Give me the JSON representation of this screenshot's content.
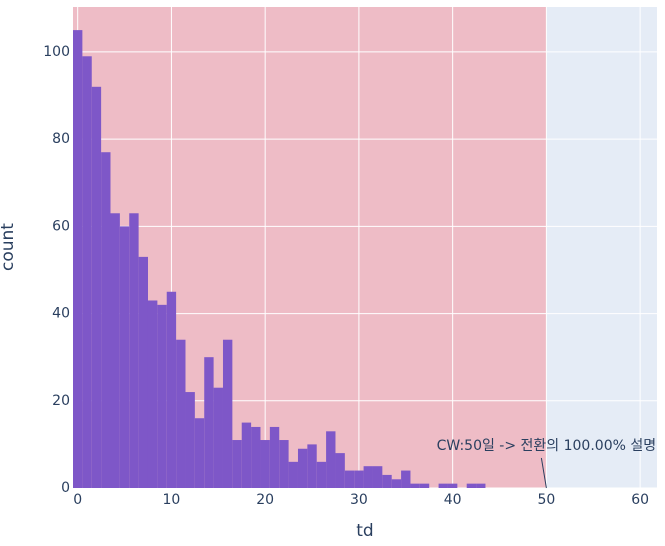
{
  "chart_data": {
    "type": "histogram",
    "x_label": "td",
    "y_label": "count",
    "bins": [
      -0.5,
      0.5,
      1.5,
      2.5,
      3.5,
      4.5,
      5.5,
      6.5,
      7.5,
      8.5,
      9.5,
      10.5,
      11.5,
      12.5,
      13.5,
      14.5,
      15.5,
      16.5,
      17.5,
      18.5,
      19.5,
      20.5,
      21.5,
      22.5,
      23.5,
      24.5,
      25.5,
      26.5,
      27.5,
      28.5,
      29.5,
      30.5,
      31.5,
      32.5,
      33.5,
      34.5,
      35.5,
      36.5,
      37.5,
      38.5,
      39.5,
      40.5,
      41.5,
      42.5,
      43.5
    ],
    "values": [
      105,
      99,
      92,
      77,
      63,
      60,
      63,
      53,
      43,
      42,
      45,
      34,
      22,
      16,
      30,
      23,
      34,
      11,
      15,
      14,
      11,
      14,
      11,
      6,
      9,
      10,
      6,
      13,
      8,
      4,
      4,
      5,
      5,
      3,
      2,
      4,
      1,
      1,
      0,
      1,
      1,
      0,
      1,
      1
    ],
    "color": "#7e57c8",
    "xlim": [
      -0.5,
      61.8
    ],
    "ylim": [
      0,
      110.3
    ],
    "xticks": [
      0,
      10,
      20,
      30,
      40,
      50,
      60
    ],
    "yticks": [
      0,
      20,
      40,
      60,
      80,
      100
    ],
    "grid": true,
    "shaded_region": {
      "x0": -0.5,
      "x1": 50,
      "color": "#f0b4bd"
    },
    "annotation": {
      "text": "CW:50일 -> 전환의 100.00% 설명",
      "x": 50,
      "y": 0
    }
  }
}
